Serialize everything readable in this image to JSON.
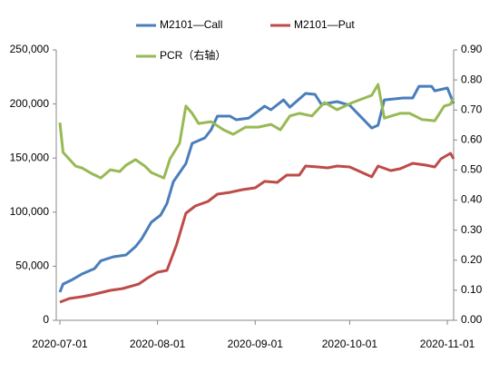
{
  "chart_data": {
    "type": "line",
    "series": [
      {
        "name": "M2101—Call",
        "color": "#4a7ebb",
        "axis": "y",
        "x": [
          "2020-07-01",
          "2020-07-02",
          "2020-07-05",
          "2020-07-08",
          "2020-07-12",
          "2020-07-14",
          "2020-07-18",
          "2020-07-22",
          "2020-07-25",
          "2020-07-27",
          "2020-07-30",
          "2020-08-02",
          "2020-08-04",
          "2020-08-06",
          "2020-08-10",
          "2020-08-12",
          "2020-08-16",
          "2020-08-18",
          "2020-08-20",
          "2020-08-24",
          "2020-08-26",
          "2020-08-30",
          "2020-09-04",
          "2020-09-06",
          "2020-09-10",
          "2020-09-12",
          "2020-09-17",
          "2020-09-20",
          "2020-09-22",
          "2020-09-27",
          "2020-10-01",
          "2020-10-08",
          "2020-10-10",
          "2020-10-12",
          "2020-10-18",
          "2020-10-21",
          "2020-10-23",
          "2020-10-27",
          "2020-10-28",
          "2020-11-01",
          "2020-11-03"
        ],
        "values": [
          26000,
          33500,
          37700,
          42800,
          47800,
          55000,
          58700,
          60400,
          68000,
          75500,
          90600,
          97300,
          108000,
          128000,
          145000,
          163600,
          168600,
          176200,
          188800,
          188800,
          185400,
          187000,
          198000,
          194600,
          203800,
          197100,
          209700,
          208900,
          199700,
          202200,
          198800,
          177800,
          180400,
          203800,
          205500,
          205500,
          216400,
          216400,
          212200,
          214800,
          200500
        ]
      },
      {
        "name": "M2101—Put",
        "color": "#be4b48",
        "axis": "y",
        "x": [
          "2020-07-01",
          "2020-07-04",
          "2020-07-08",
          "2020-07-11",
          "2020-07-17",
          "2020-07-21",
          "2020-07-26",
          "2020-07-29",
          "2020-08-01",
          "2020-08-04",
          "2020-08-07",
          "2020-08-10",
          "2020-08-13",
          "2020-08-17",
          "2020-08-20",
          "2020-08-24",
          "2020-08-28",
          "2020-09-01",
          "2020-09-04",
          "2020-09-08",
          "2020-09-11",
          "2020-09-15",
          "2020-09-17",
          "2020-09-21",
          "2020-09-24",
          "2020-09-27",
          "2020-10-01",
          "2020-10-08",
          "2020-10-10",
          "2020-10-14",
          "2020-10-17",
          "2020-10-21",
          "2020-10-25",
          "2020-10-28",
          "2020-10-30",
          "2020-11-02",
          "2020-11-03"
        ],
        "values": [
          16800,
          20100,
          21800,
          23500,
          27700,
          29400,
          33500,
          39400,
          44500,
          46100,
          69600,
          99000,
          105700,
          109900,
          116600,
          118300,
          120800,
          122500,
          128400,
          127500,
          134200,
          134200,
          142600,
          141800,
          140900,
          142600,
          141800,
          132600,
          142600,
          138400,
          140100,
          145100,
          143500,
          141800,
          149300,
          154400,
          149300
        ]
      },
      {
        "name": "PCR（右轴）",
        "color": "#98b954",
        "axis": "y2",
        "x": [
          "2020-07-01",
          "2020-07-02",
          "2020-07-06",
          "2020-07-08",
          "2020-07-11",
          "2020-07-14",
          "2020-07-17",
          "2020-07-20",
          "2020-07-22",
          "2020-07-25",
          "2020-07-28",
          "2020-07-30",
          "2020-08-03",
          "2020-08-05",
          "2020-08-08",
          "2020-08-10",
          "2020-08-12",
          "2020-08-14",
          "2020-08-18",
          "2020-08-22",
          "2020-08-25",
          "2020-08-29",
          "2020-09-02",
          "2020-09-06",
          "2020-09-09",
          "2020-09-12",
          "2020-09-15",
          "2020-09-19",
          "2020-09-23",
          "2020-09-27",
          "2020-10-02",
          "2020-10-08",
          "2020-10-10",
          "2020-10-12",
          "2020-10-17",
          "2020-10-20",
          "2020-10-24",
          "2020-10-28",
          "2020-10-29",
          "2020-10-31",
          "2020-11-02",
          "2020-11-03"
        ],
        "values": [
          0.658,
          0.559,
          0.513,
          0.507,
          0.489,
          0.474,
          0.501,
          0.495,
          0.516,
          0.535,
          0.513,
          0.492,
          0.474,
          0.538,
          0.589,
          0.713,
          0.689,
          0.655,
          0.661,
          0.634,
          0.619,
          0.643,
          0.643,
          0.652,
          0.634,
          0.68,
          0.689,
          0.68,
          0.725,
          0.701,
          0.725,
          0.749,
          0.785,
          0.673,
          0.689,
          0.689,
          0.668,
          0.664,
          0.68,
          0.713,
          0.719,
          0.74
        ]
      }
    ],
    "xlim": [
      "2020-07-01",
      "2020-11-03"
    ],
    "xticks": [
      "2020-07-01",
      "2020-08-01",
      "2020-09-01",
      "2020-10-01",
      "2020-11-01"
    ],
    "ylim": [
      0,
      250000
    ],
    "yticks": [
      0,
      {
        "value": 50000,
        "label": "50,000"
      },
      {
        "value": 100000,
        "label": "100,000"
      },
      {
        "value": 150000,
        "label": "150,000"
      },
      {
        "value": 200000,
        "label": "200,000"
      },
      {
        "value": 250000,
        "label": "250,000"
      }
    ],
    "y2lim": [
      0,
      0.9
    ],
    "y2ticks": [
      {
        "value": 0,
        "label": "0.00"
      },
      {
        "value": 0.1,
        "label": "0.10"
      },
      {
        "value": 0.2,
        "label": "0.20"
      },
      {
        "value": 0.3,
        "label": "0.30"
      },
      {
        "value": 0.4,
        "label": "0.40"
      },
      {
        "value": 0.5,
        "label": "0.50"
      },
      {
        "value": 0.6,
        "label": "0.60"
      },
      {
        "value": 0.7,
        "label": "0.70"
      },
      {
        "value": 0.8,
        "label": "0.80"
      },
      {
        "value": 0.9,
        "label": "0.90"
      }
    ],
    "grid": false
  }
}
